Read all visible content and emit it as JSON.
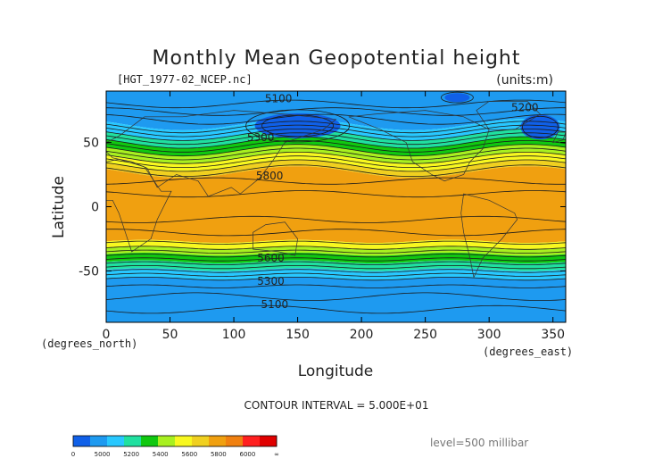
{
  "chart_data": {
    "type": "heatmap",
    "title": "Monthly Mean Geopotential height",
    "file_label": "[HGT_1977-02_NCEP.nc]",
    "units_label": "(units:m)",
    "xlabel": "Longitude",
    "ylabel": "Latitude",
    "x_unit_label": "(degrees_east)",
    "y_unit_label": "(degrees_north)",
    "contour_interval_label": "CONTOUR INTERVAL = 5.000E+01",
    "level_label": "level=500 millibar",
    "xlim": [
      0,
      360
    ],
    "ylim": [
      -90,
      90
    ],
    "x_ticks": [
      0,
      50,
      100,
      150,
      200,
      250,
      300,
      350
    ],
    "y_ticks": [
      -50,
      0,
      50
    ],
    "colorbar": {
      "labels": [
        "0",
        "5000",
        "5200",
        "5400",
        "5600",
        "5800",
        "6000",
        "∞"
      ],
      "colors": [
        "#1060e8",
        "#1e9af0",
        "#28c8ff",
        "#20e0a0",
        "#10c810",
        "#a8f020",
        "#f8f820",
        "#f0d020",
        "#f0a010",
        "#f08010",
        "#ff2020",
        "#e00000"
      ]
    },
    "lat_bands": [
      {
        "lat": [
          64,
          90
        ],
        "range": "5000-5200",
        "color": "#1e9af0"
      },
      {
        "lat": [
          56,
          64
        ],
        "range": "5200-5400",
        "color": "#28c8ff"
      },
      {
        "lat": [
          50,
          56
        ],
        "range": "5400-5500",
        "color": "#20e0a0"
      },
      {
        "lat": [
          44,
          50
        ],
        "range": "5500-5600",
        "color": "#10c810"
      },
      {
        "lat": [
          38,
          44
        ],
        "range": "5600-5700",
        "color": "#a8f020"
      },
      {
        "lat": [
          32,
          38
        ],
        "range": "5700-5800",
        "color": "#f8f820"
      },
      {
        "lat": [
          27,
          32
        ],
        "range": "5800-5850",
        "color": "#f0d020"
      },
      {
        "lat": [
          -27,
          27
        ],
        "range": "5850-6000",
        "color": "#f0a010"
      },
      {
        "lat": [
          -32,
          -27
        ],
        "range": "5800-5850",
        "color": "#f8f820"
      },
      {
        "lat": [
          -37,
          -32
        ],
        "range": "5700-5800",
        "color": "#a8f020"
      },
      {
        "lat": [
          -43,
          -37
        ],
        "range": "5600-5700",
        "color": "#10c810"
      },
      {
        "lat": [
          -49,
          -43
        ],
        "range": "5500-5600",
        "color": "#20e0a0"
      },
      {
        "lat": [
          -56,
          -49
        ],
        "range": "5400-5500",
        "color": "#28c8ff"
      },
      {
        "lat": [
          -90,
          -56
        ],
        "range": "5000-5200",
        "color": "#1e9af0"
      }
    ],
    "features": [
      {
        "name": "low-greenland",
        "lon": 275,
        "lat": 85,
        "range": "<5000",
        "color": "#1060e8"
      },
      {
        "name": "low-siberia",
        "lon": 150,
        "lat": 63,
        "range": "5000-5100",
        "color": "#1060e8"
      },
      {
        "name": "low-canada",
        "lon": 340,
        "lat": 62,
        "range": "5000-5100",
        "color": "#1060e8"
      }
    ],
    "contour_labels": [
      {
        "text": "5100",
        "lon": 135,
        "lat": 84
      },
      {
        "text": "5200",
        "lon": 328,
        "lat": 77
      },
      {
        "text": "5300",
        "lon": 121,
        "lat": 54
      },
      {
        "text": "5800",
        "lon": 128,
        "lat": 24
      },
      {
        "text": "5600",
        "lon": 129,
        "lat": -40
      },
      {
        "text": "5300",
        "lon": 129,
        "lat": -58
      },
      {
        "text": "5100",
        "lon": 132,
        "lat": -76
      }
    ]
  }
}
